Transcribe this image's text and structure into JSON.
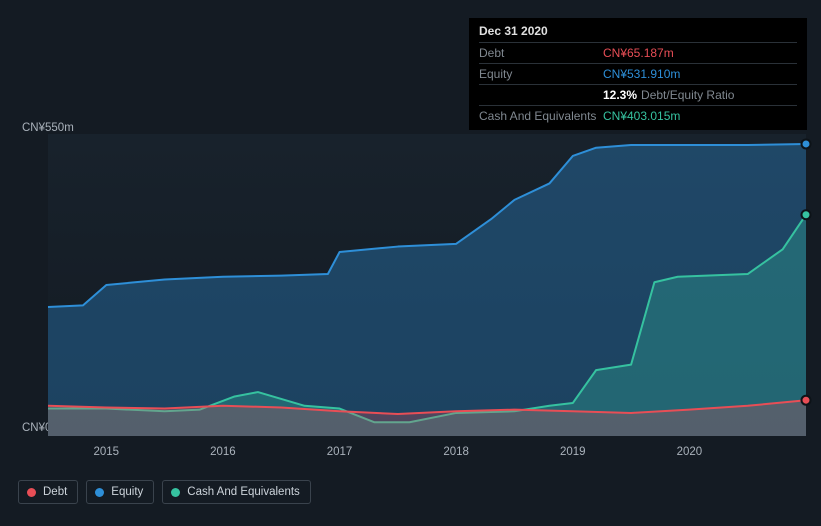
{
  "tooltip": {
    "date": "Dec 31 2020",
    "debt_label": "Debt",
    "debt_value": "CN¥65.187m",
    "equity_label": "Equity",
    "equity_value": "CN¥531.910m",
    "ratio_value": "12.3%",
    "ratio_label": "Debt/Equity Ratio",
    "cash_label": "Cash And Equivalents",
    "cash_value": "CN¥403.015m"
  },
  "y_axis": {
    "top": "CN¥550m",
    "bottom": "CN¥0"
  },
  "x_axis": {
    "labels": [
      "2015",
      "2016",
      "2017",
      "2018",
      "2019",
      "2020"
    ]
  },
  "legend": {
    "debt": "Debt",
    "equity": "Equity",
    "cash": "Cash And Equivalents"
  },
  "chart": {
    "type": "area",
    "background_color": "#141b23",
    "plot_bg_top": "#18222c",
    "plot_bg_bottom": "#131a22",
    "ylim": [
      0,
      550
    ],
    "xlim": [
      2014.5,
      2021.0
    ],
    "series": {
      "equity": {
        "color": "#2e8fd8",
        "fill_opacity": 0.35,
        "line_width": 2,
        "x": [
          2014.5,
          2014.8,
          2015.0,
          2015.5,
          2016.0,
          2016.5,
          2016.9,
          2017.0,
          2017.5,
          2018.0,
          2018.3,
          2018.5,
          2018.8,
          2019.0,
          2019.2,
          2019.5,
          2020.0,
          2020.5,
          2021.0
        ],
        "y": [
          235,
          238,
          275,
          285,
          290,
          292,
          295,
          335,
          345,
          350,
          395,
          430,
          460,
          510,
          525,
          530,
          530,
          530,
          531.9
        ]
      },
      "cash": {
        "color": "#36c2a0",
        "fill_opacity": 0.28,
        "line_width": 2,
        "x": [
          2014.5,
          2015.0,
          2015.5,
          2015.8,
          2016.1,
          2016.3,
          2016.7,
          2017.0,
          2017.3,
          2017.6,
          2018.0,
          2018.5,
          2018.8,
          2019.0,
          2019.2,
          2019.5,
          2019.7,
          2019.9,
          2020.5,
          2020.8,
          2021.0
        ],
        "y": [
          50,
          50,
          45,
          48,
          72,
          80,
          55,
          50,
          25,
          25,
          42,
          45,
          55,
          60,
          120,
          130,
          280,
          290,
          295,
          340,
          403
        ]
      },
      "debt": {
        "color": "#e84e56",
        "fill_opacity": 0.25,
        "line_width": 2,
        "x": [
          2014.5,
          2015.0,
          2015.5,
          2016.0,
          2016.5,
          2017.0,
          2017.5,
          2018.0,
          2018.5,
          2019.0,
          2019.5,
          2020.0,
          2020.5,
          2021.0
        ],
        "y": [
          55,
          52,
          50,
          55,
          52,
          45,
          40,
          45,
          48,
          45,
          42,
          48,
          55,
          65.19
        ]
      }
    }
  }
}
